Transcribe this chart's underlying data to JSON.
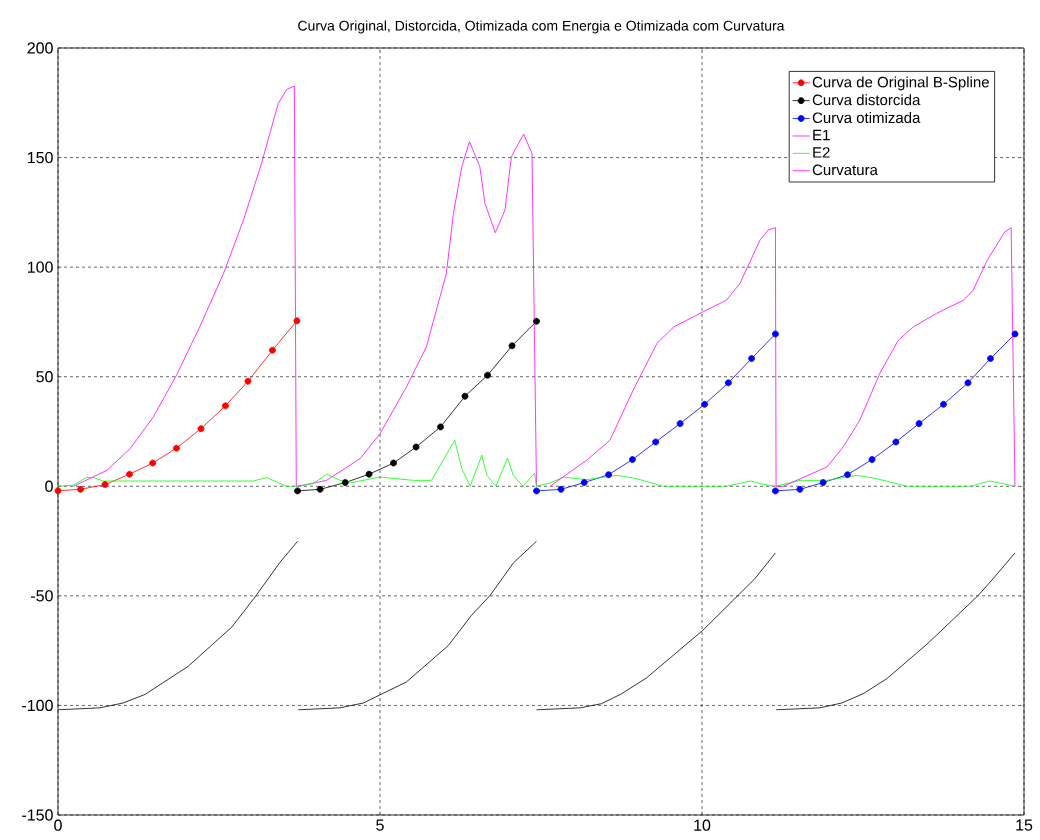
{
  "chart_data": {
    "type": "line",
    "title": "Curva Original, Distorcida, Otimizada com Energia e Otimizada com Curvatura",
    "xlim": [
      0,
      15
    ],
    "xticks": [
      0,
      5,
      10,
      15
    ],
    "ylim": [
      -150,
      200
    ],
    "yticks": [
      -150,
      -100,
      -50,
      0,
      50,
      100,
      150,
      200
    ],
    "grid": true,
    "legend": "top right",
    "series": [
      {
        "name": "Curva de Original B-Spline",
        "color": "#ff0000",
        "marker": "circle",
        "x": [
          0,
          0.35,
          0.73,
          1.11,
          1.47,
          1.84,
          2.22,
          2.6,
          2.95,
          3.33,
          3.71
        ],
        "values": [
          -2,
          -1.4,
          0.8,
          5.5,
          10.6,
          17.4,
          26.3,
          36.7,
          47.9,
          62.1,
          75.5
        ]
      },
      {
        "name": "Curva distorcida",
        "color": "#000000",
        "marker": "circle",
        "x": [
          3.72,
          4.07,
          4.46,
          4.83,
          5.21,
          5.56,
          5.94,
          6.32,
          6.67,
          7.05,
          7.43
        ],
        "values": [
          -2.1,
          -1.4,
          1.7,
          5.5,
          10.6,
          17.9,
          27.1,
          41.1,
          50.7,
          64.1,
          75.3
        ]
      },
      {
        "name": "Curva otimizada",
        "color": "#0000ff",
        "marker": "circle",
        "x": [
          7.43,
          7.81,
          8.17,
          8.55,
          8.92,
          9.28,
          9.66,
          10.04,
          10.41,
          10.77,
          11.14,
          null,
          11.14,
          11.52,
          11.88,
          12.26,
          12.64,
          13.01,
          13.37,
          13.75,
          14.13,
          14.48,
          14.86
        ],
        "values": [
          -2.1,
          -1.4,
          1.7,
          5.3,
          12.2,
          20.2,
          28.6,
          37.4,
          47.2,
          58.3,
          69.5,
          null,
          -2.1,
          -1.4,
          1.7,
          5.3,
          12.2,
          20.2,
          28.6,
          37.4,
          47.2,
          58.3,
          69.5
        ]
      },
      {
        "name": "E1",
        "color": "#ff00ff",
        "marker": "none",
        "x": [
          0.24,
          0.76,
          1.12,
          1.48,
          1.84,
          2.2,
          2.57,
          2.88,
          3.16,
          3.42,
          3.55,
          3.67,
          3.7,
          3.72,
          4.17,
          4.69,
          5.0,
          5.41,
          5.72,
          6.03,
          6.14,
          6.27,
          6.39,
          6.55,
          6.63,
          6.79,
          6.94,
          7.04,
          7.23,
          7.36,
          7.43
        ],
        "values": [
          0,
          7.3,
          17.2,
          31.6,
          50.7,
          72.7,
          97.1,
          121.5,
          147.3,
          174.7,
          181.1,
          182.6,
          0,
          0,
          2.7,
          12.6,
          24,
          45.3,
          63.6,
          97.1,
          124.5,
          145.8,
          157.3,
          145.8,
          129,
          115.7,
          126,
          150.4,
          160.7,
          151.9,
          0
        ]
      },
      {
        "name": "E2",
        "color": "#00ff00",
        "marker": "none",
        "x": [
          0,
          0.24,
          0.44,
          0.55,
          0.7,
          3.03,
          3.24,
          3.45,
          3.55,
          3.72,
          3.96,
          4.17,
          4.38,
          4.56,
          5.0,
          5.52,
          5.8,
          6.16,
          6.27,
          6.4,
          6.58,
          6.66,
          6.8,
          6.98,
          7.07,
          7.22,
          7.4,
          7.43,
          7.64,
          7.85,
          8.21,
          8.68,
          8.98,
          9.4,
          10.38,
          10.75,
          10.95,
          11.14,
          11.52,
          11.94,
          12.4,
          12.71,
          13.18,
          14.16,
          14.47,
          14.72,
          14.86
        ],
        "values": [
          0,
          0.5,
          4,
          4,
          2.4,
          2.4,
          4,
          1.2,
          0,
          0,
          1.2,
          5.5,
          2.7,
          1.7,
          4.2,
          2.7,
          2.7,
          21,
          8.1,
          0,
          14.2,
          5,
          0,
          12.9,
          5,
          0,
          6,
          0,
          1.5,
          4.2,
          3,
          5,
          3.5,
          0,
          0,
          2.4,
          0.9,
          0,
          2.7,
          2.7,
          5,
          3.5,
          0,
          0,
          2.4,
          0.9,
          0
        ]
      },
      {
        "name": "Curvatura",
        "color": "#ff00ff",
        "marker": "none",
        "x": [
          7.64,
          8.21,
          8.57,
          8.93,
          9.3,
          9.56,
          9.97,
          10.38,
          10.59,
          10.9,
          11.03,
          11.14,
          11.15,
          11.26,
          11.94,
          12.19,
          12.45,
          12.76,
          13.05,
          13.28,
          13.64,
          14.06,
          14.21,
          14.43,
          14.7,
          14.8,
          14.86
        ],
        "values": [
          0,
          11.9,
          21,
          43.8,
          65.2,
          72.7,
          78.9,
          84.9,
          92.6,
          112.3,
          117,
          118,
          0,
          0,
          8.8,
          17.9,
          30.1,
          51.5,
          66.7,
          72.7,
          78.9,
          84.9,
          89.5,
          103.2,
          116,
          118,
          0
        ]
      },
      {
        "color": "#000000",
        "marker": "none",
        "x": [
          0,
          0.65,
          1.01,
          1.35,
          2.02,
          2.7,
          3.06,
          3.45,
          3.72,
          null,
          3.73,
          4.38,
          4.74,
          5.41,
          6.06,
          6.42,
          6.71,
          7.07,
          7.43,
          null,
          7.43,
          8.11,
          8.44,
          8.75,
          9.14,
          10.01,
          10.56,
          10.82,
          11.14,
          null,
          11.15,
          11.83,
          12.17,
          12.5,
          12.87,
          13.51,
          14.29,
          14.52,
          14.86
        ],
        "values": [
          -102,
          -101.1,
          -98.9,
          -95,
          -82.2,
          -64.2,
          -50.5,
          -34.6,
          -25.1,
          null,
          -102,
          -101.1,
          -98.9,
          -89.3,
          -72.7,
          -58.9,
          -49.8,
          -35,
          -25.1,
          null,
          -102,
          -101.1,
          -99.2,
          -94.7,
          -87.4,
          -65.8,
          -49.8,
          -42.2,
          -30.4,
          null,
          -102,
          -101.1,
          -98.9,
          -94.7,
          -87.8,
          -71.6,
          -49.8,
          -42.2,
          -30.4
        ]
      }
    ]
  }
}
